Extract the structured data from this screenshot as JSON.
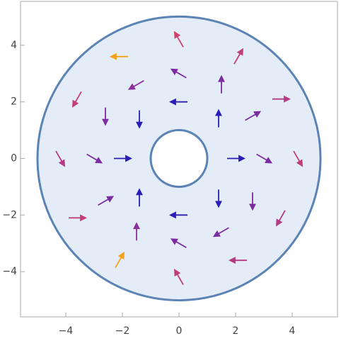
{
  "chart_data": {
    "type": "vector",
    "region": {
      "inner_radius": 1,
      "outer_radius": 5,
      "fill": "#e4ecf8",
      "stroke": "#5b84b5"
    },
    "xlim": [
      -5.6,
      5.6
    ],
    "ylim": [
      -5.6,
      5.55
    ],
    "xticks": [
      {
        "value": -4,
        "label": "−4"
      },
      {
        "value": -2,
        "label": "−2"
      },
      0,
      2,
      4
    ],
    "yticks": [
      {
        "value": -4,
        "label": "−4"
      },
      {
        "value": -2,
        "label": "−2"
      },
      0,
      2,
      4
    ],
    "colors": [
      "#2a1fb5",
      "#8a2e9e",
      "#d8456a",
      "#f7a21b"
    ],
    "colorlim": [
      1,
      4.5
    ],
    "arrows": {
      "x": [
        2,
        1.4,
        0,
        -1.4,
        -2,
        -1.4,
        0,
        1.4,
        3,
        2.6,
        1.5,
        0,
        -1.5,
        -2.6,
        -3,
        -2.6,
        -1.5,
        0,
        1.5,
        2.6,
        4.2,
        3.6,
        2.1,
        0,
        -2.1,
        -3.6,
        -4.2,
        -3.6,
        -2.1,
        0,
        2.1,
        3.6
      ],
      "y": [
        0,
        1.4,
        2,
        1.4,
        0,
        -1.4,
        -2,
        -1.4,
        0,
        1.5,
        2.6,
        3,
        2.6,
        1.5,
        0,
        -1.5,
        -2.6,
        -3,
        -2.6,
        -1.5,
        0,
        2.1,
        3.6,
        4.2,
        3.6,
        2.1,
        0,
        -2.1,
        -3.6,
        -4.2,
        -3.6,
        -2.1
      ],
      "angle": [
        0,
        90,
        180,
        -90,
        0,
        90,
        180,
        -90,
        -30,
        30,
        90,
        150,
        -150,
        -90,
        -30,
        30,
        90,
        150,
        -150,
        -90,
        -60,
        0,
        60,
        120,
        180,
        -120,
        -60,
        0,
        60,
        120,
        180,
        -120
      ],
      "magnitude": [
        1,
        1,
        1,
        1,
        1,
        1,
        1,
        1,
        2,
        2,
        2,
        2,
        2.2,
        2,
        2,
        2,
        2.2,
        2,
        2,
        2,
        3,
        2.8,
        3,
        3.2,
        4.5,
        3,
        2.8,
        3,
        4.5,
        3,
        2.8,
        2.8
      ]
    }
  }
}
